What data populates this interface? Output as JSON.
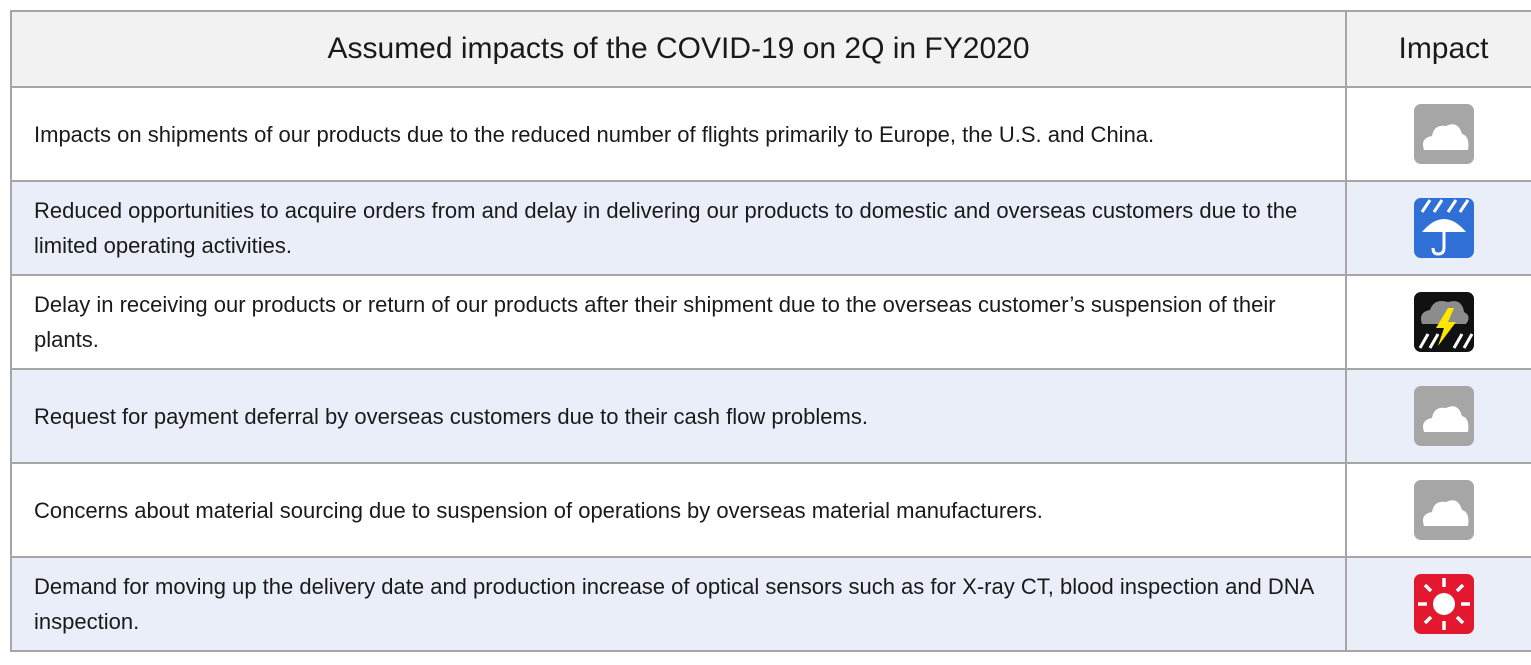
{
  "header": {
    "title": "Assumed impacts of the COVID-19 on 2Q in FY2020",
    "impact": "Impact"
  },
  "rows": [
    "Impacts on shipments of our products due to the reduced number of flights primarily to Europe, the U.S. and China.",
    "Reduced opportunities to acquire orders from and delay in delivering our products to domestic and overseas customers due to the limited operating activities.",
    "Delay in receiving our products or return of our products after their shipment due to the overseas customer’s suspension of their plants.",
    "Request for payment deferral by overseas customers due to their cash flow problems.",
    "Concerns about material sourcing due to suspension of operations by overseas material manufacturers.",
    "Demand for moving up the delivery date and production increase of optical sensors such as for X-ray CT, blood inspection and DNA inspection."
  ]
}
